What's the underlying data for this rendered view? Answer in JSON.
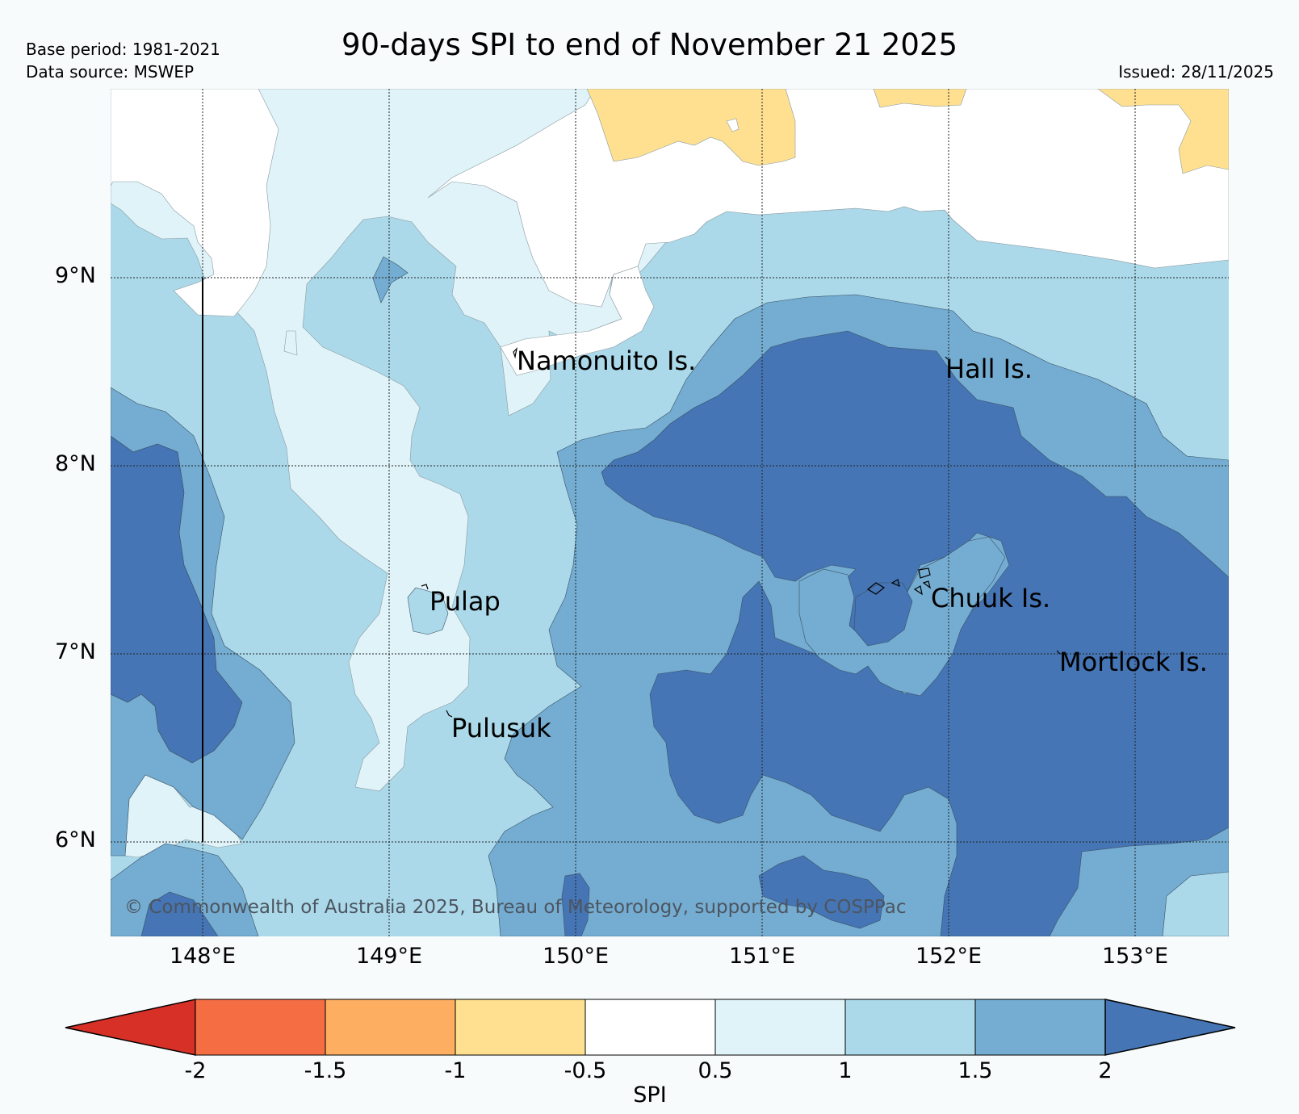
{
  "title": "90-days SPI to end of November 21 2025",
  "meta": {
    "base_period": "Base period: 1981-2021",
    "data_source": "Data source: MSWEP",
    "issued": "Issued: 28/11/2025"
  },
  "axes": {
    "lat_ticks": [
      "9°N",
      "8°N",
      "7°N",
      "6°N"
    ],
    "lon_ticks": [
      "148°E",
      "149°E",
      "150°E",
      "151°E",
      "152°E",
      "153°E"
    ]
  },
  "places": [
    {
      "id": "namonuito",
      "name": "Namonuito Is."
    },
    {
      "id": "hall",
      "name": "Hall Is."
    },
    {
      "id": "pulap",
      "name": "Pulap"
    },
    {
      "id": "chuuk",
      "name": "Chuuk Is."
    },
    {
      "id": "mortlock",
      "name": "Mortlock Is."
    },
    {
      "id": "pulusuk",
      "name": "Pulusuk"
    }
  ],
  "copyright": "© Commonwealth of Australia 2025, Bureau of Meteorology, supported by COSPPac",
  "colorbar": {
    "label": "SPI",
    "ticks": [
      "-2",
      "-1.5",
      "-1",
      "-0.5",
      "0.5",
      "1",
      "1.5",
      "2"
    ],
    "colors": {
      "below_min": "#d73027",
      "c1": "#f46d43",
      "c2": "#fdae61",
      "c3": "#fee090",
      "c4": "#ffffff",
      "c5": "#e0f3f8",
      "c6": "#abd9e9",
      "c7": "#74add1",
      "above_max": "#4575b4"
    }
  }
}
